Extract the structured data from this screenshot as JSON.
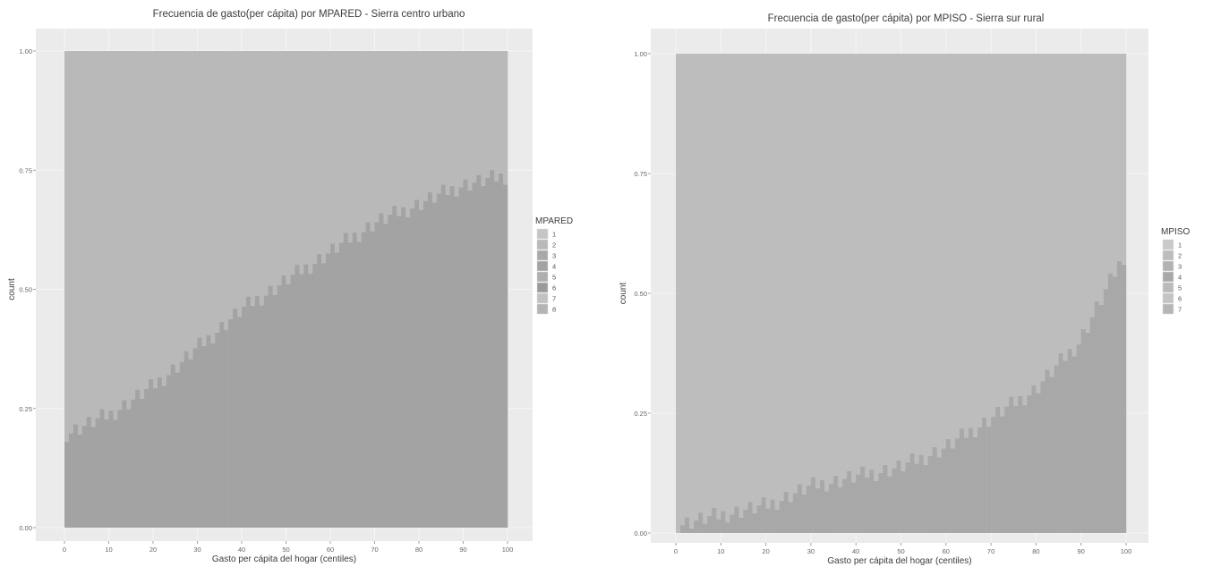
{
  "chart_data": [
    {
      "type": "bar",
      "stacked": "fill",
      "title": "Frecuencia de gasto(per cápita) por MPARED - Sierra centro urbano",
      "xlabel": "Gasto per cápita del hogar (centiles)",
      "ylabel": "count",
      "xlim": [
        0,
        100
      ],
      "ylim": [
        0,
        1
      ],
      "x_ticks": [
        "0",
        "10",
        "20",
        "30",
        "40",
        "50",
        "60",
        "70",
        "80",
        "90",
        "100"
      ],
      "y_ticks": [
        "0.00",
        "0.25",
        "0.50",
        "0.75",
        "1.00"
      ],
      "grid": true,
      "legend_position": "right",
      "legend_title": "MPARED",
      "legend_labels": [
        "1",
        "2",
        "3",
        "4",
        "5",
        "6",
        "7",
        "8"
      ],
      "colors": [
        "#c6c6c6",
        "#b9b9b9",
        "#a9a9a9",
        "#a3a3a3",
        "#aeaeae",
        "#9a9a9a",
        "#c2c2c2",
        "#b4b4b4"
      ],
      "x": [
        1,
        10,
        20,
        30,
        40,
        50,
        60,
        70,
        80,
        90,
        100
      ],
      "boundary_profile": [
        0.2,
        0.24,
        0.3,
        0.38,
        0.46,
        0.52,
        0.58,
        0.64,
        0.68,
        0.72,
        0.74
      ]
    },
    {
      "type": "bar",
      "stacked": "fill",
      "title": "Frecuencia de gasto(per cápita) por MPISO - Sierra sur rural",
      "xlabel": "Gasto per cápita del hogar (centiles)",
      "ylabel": "count",
      "xlim": [
        0,
        100
      ],
      "ylim": [
        0,
        1
      ],
      "x_ticks": [
        "0",
        "10",
        "20",
        "30",
        "40",
        "50",
        "60",
        "70",
        "80",
        "90",
        "100"
      ],
      "y_ticks": [
        "0.00",
        "0.25",
        "0.50",
        "0.75",
        "1.00"
      ],
      "grid": true,
      "legend_position": "right",
      "legend_title": "MPISO",
      "legend_labels": [
        "1",
        "2",
        "3",
        "4",
        "5",
        "6",
        "7"
      ],
      "colors": [
        "#c9c9c9",
        "#bdbdbd",
        "#b2b2b2",
        "#a8a8a8",
        "#bababa",
        "#c4c4c4",
        "#b6b6b6"
      ],
      "x": [
        1,
        10,
        20,
        30,
        40,
        50,
        60,
        70,
        80,
        90,
        100
      ],
      "boundary_profile": [
        0.02,
        0.04,
        0.06,
        0.1,
        0.12,
        0.14,
        0.18,
        0.24,
        0.3,
        0.4,
        0.58
      ]
    }
  ]
}
